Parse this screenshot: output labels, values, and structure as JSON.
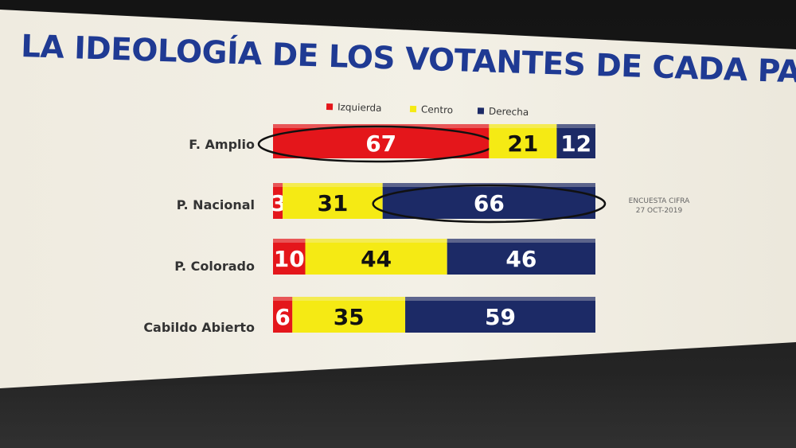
{
  "chart_data": {
    "type": "bar",
    "stacked": true,
    "orientation": "horizontal",
    "title": "LA IDEOLOGÍA DE LOS VOTANTES DE CADA PARTIDO",
    "categories": [
      "F. Amplio",
      "P. Nacional",
      "P. Colorado",
      "Cabildo Abierto"
    ],
    "series": [
      {
        "name": "Izquierda",
        "color": "#e4161b",
        "values": [
          67,
          3,
          10,
          6
        ]
      },
      {
        "name": "Centro",
        "color": "#f5ea14",
        "values": [
          21,
          31,
          44,
          35
        ]
      },
      {
        "name": "Derecha",
        "color": "#1c2a66",
        "values": [
          12,
          66,
          46,
          59
        ]
      }
    ],
    "legend_position": "top",
    "note": [
      "ENCUESTA CIFRA",
      "27 OCT-2019"
    ],
    "highlights": [
      "F. Amplio:Izquierda",
      "P. Nacional:Derecha"
    ]
  }
}
